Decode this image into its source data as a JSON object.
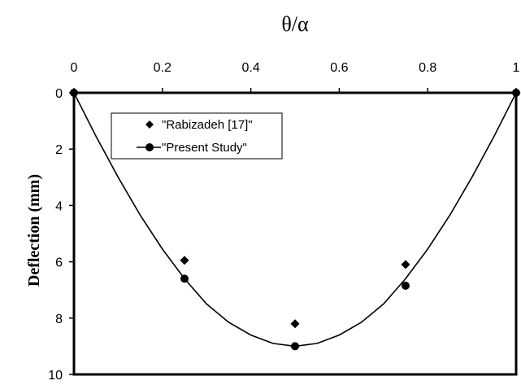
{
  "chart_data": {
    "type": "scatter",
    "xlabel": "θ/α",
    "ylabel": "Deflection (mm)",
    "xlim": [
      0,
      1
    ],
    "ylim": [
      0,
      10
    ],
    "y_inverted": true,
    "x_axis_position": "top",
    "x_ticks": [
      "0",
      "0.2",
      "0.4",
      "0.6",
      "0.8",
      "1"
    ],
    "y_ticks": [
      "0",
      "2",
      "4",
      "6",
      "8",
      "10"
    ],
    "grid": false,
    "legend_position": "top-left",
    "series": [
      {
        "name": "\"Rabizadeh [17]\"",
        "marker": "diamond",
        "line": false,
        "x": [
          0,
          0.25,
          0.5,
          0.75,
          1
        ],
        "y": [
          0,
          5.95,
          8.2,
          6.1,
          0
        ]
      },
      {
        "name": "\"Present Study\"",
        "marker": "circle",
        "line": false,
        "x": [
          0,
          0.25,
          0.5,
          0.75,
          1
        ],
        "y": [
          0,
          6.6,
          9.0,
          6.85,
          0
        ]
      },
      {
        "name": "",
        "marker": "none",
        "line": true,
        "x": [
          0,
          0.05,
          0.1,
          0.15,
          0.2,
          0.25,
          0.3,
          0.35,
          0.4,
          0.45,
          0.5,
          0.55,
          0.6,
          0.65,
          0.7,
          0.75,
          0.8,
          0.85,
          0.9,
          0.95,
          1
        ],
        "y": [
          0,
          1.55,
          3.0,
          4.35,
          5.55,
          6.6,
          7.5,
          8.15,
          8.6,
          8.9,
          9.0,
          8.9,
          8.6,
          8.15,
          7.5,
          6.6,
          5.55,
          4.35,
          3.0,
          1.55,
          0
        ]
      }
    ],
    "colors": {
      "marker": "#000000",
      "line": "#000000",
      "background": "#ffffff"
    }
  }
}
